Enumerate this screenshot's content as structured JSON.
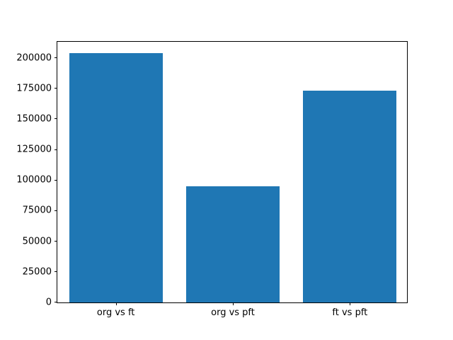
{
  "chart_data": {
    "type": "bar",
    "title": "",
    "xlabel": "",
    "ylabel": "",
    "categories": [
      "org vs ft",
      "org vs pft",
      "ft vs pft"
    ],
    "values": [
      204000,
      95000,
      173000
    ],
    "ylim": [
      0,
      214200
    ],
    "yticks": [
      0,
      25000,
      50000,
      75000,
      100000,
      125000,
      150000,
      175000,
      200000
    ],
    "bar_color": "#1f77b4",
    "bar_width_fraction": 0.8,
    "grid": false,
    "legend": "none",
    "background_color": "#ffffff",
    "axis_color": "#000000"
  }
}
